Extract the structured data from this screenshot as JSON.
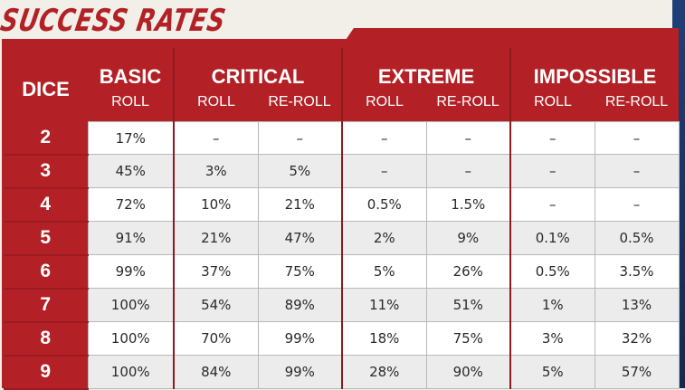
{
  "title": "SUCCESS RATES",
  "headers": {
    "dice": "DICE",
    "basic": "BASIC",
    "critical": "CRITICAL",
    "extreme": "EXTREME",
    "impossible": "IMPOSSIBLE",
    "roll": "ROLL",
    "reroll": "RE-ROLL"
  },
  "rows": [
    {
      "dice": "2",
      "cells": [
        "17%",
        "–",
        "–",
        "–",
        "–",
        "–",
        "–"
      ]
    },
    {
      "dice": "3",
      "cells": [
        "45%",
        "3%",
        "5%",
        "–",
        "–",
        "–",
        "–"
      ]
    },
    {
      "dice": "4",
      "cells": [
        "72%",
        "10%",
        "21%",
        "0.5%",
        "1.5%",
        "–",
        "–"
      ]
    },
    {
      "dice": "5",
      "cells": [
        "91%",
        "21%",
        "47%",
        "2%",
        "9%",
        "0.1%",
        "0.5%"
      ]
    },
    {
      "dice": "6",
      "cells": [
        "99%",
        "37%",
        "75%",
        "5%",
        "26%",
        "0.5%",
        "3.5%"
      ]
    },
    {
      "dice": "7",
      "cells": [
        "100%",
        "54%",
        "89%",
        "11%",
        "51%",
        "1%",
        "13%"
      ]
    },
    {
      "dice": "8",
      "cells": [
        "100%",
        "70%",
        "99%",
        "18%",
        "75%",
        "3%",
        "32%"
      ]
    },
    {
      "dice": "9",
      "cells": [
        "100%",
        "84%",
        "99%",
        "28%",
        "90%",
        "5%",
        "57%"
      ]
    }
  ],
  "colors": {
    "accent_red": "#b32126",
    "side_blue": "#1f3f7a"
  }
}
